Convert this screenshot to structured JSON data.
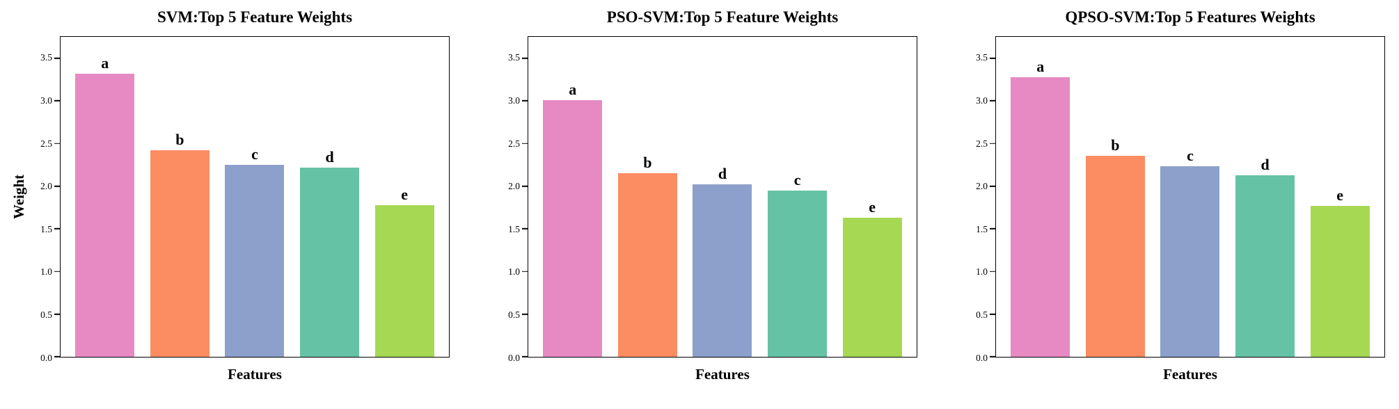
{
  "page": {
    "background": "#ffffff"
  },
  "palette": [
    "#E78AC3",
    "#FC8D62",
    "#8DA0CB",
    "#66C2A5",
    "#A6D854"
  ],
  "axis": {
    "tick_labels": [
      "0.0",
      "0.5",
      "1.0",
      "1.5",
      "2.0",
      "2.5",
      "3.0",
      "3.5"
    ],
    "tick_values": [
      0,
      0.5,
      1,
      1.5,
      2,
      2.5,
      3,
      3.5
    ],
    "display_ymax": 3.75
  },
  "chart_data": [
    {
      "type": "bar",
      "title": "SVM:Top 5 Feature Weights",
      "xlabel": "Features",
      "ylabel": "Weight",
      "categories": [
        "a",
        "b",
        "c",
        "d",
        "e"
      ],
      "values": [
        3.32,
        2.42,
        2.25,
        2.22,
        1.78
      ],
      "ylim": [
        0,
        3.75
      ],
      "yticks": [
        0,
        0.5,
        1,
        1.5,
        2,
        2.5,
        3,
        3.5
      ],
      "grid": false,
      "legend": "none",
      "bar_colors": [
        "#E78AC3",
        "#FC8D62",
        "#8DA0CB",
        "#66C2A5",
        "#A6D854"
      ]
    },
    {
      "type": "bar",
      "title": "PSO-SVM:Top 5 Feature Weights",
      "xlabel": "Features",
      "ylabel": "",
      "categories": [
        "a",
        "b",
        "d",
        "c",
        "e"
      ],
      "values": [
        3.01,
        2.15,
        2.02,
        1.95,
        1.63
      ],
      "ylim": [
        0,
        3.75
      ],
      "yticks": [
        0,
        0.5,
        1,
        1.5,
        2,
        2.5,
        3,
        3.5
      ],
      "grid": false,
      "legend": "none",
      "bar_colors": [
        "#E78AC3",
        "#FC8D62",
        "#8DA0CB",
        "#66C2A5",
        "#A6D854"
      ]
    },
    {
      "type": "bar",
      "title": "QPSO-SVM:Top 5 Features Weights",
      "xlabel": "Features",
      "ylabel": "",
      "categories": [
        "a",
        "b",
        "c",
        "d",
        "e"
      ],
      "values": [
        3.28,
        2.36,
        2.23,
        2.13,
        1.77
      ],
      "ylim": [
        0,
        3.75
      ],
      "yticks": [
        0,
        0.5,
        1,
        1.5,
        2,
        2.5,
        3,
        3.5
      ],
      "grid": false,
      "legend": "none",
      "bar_colors": [
        "#E78AC3",
        "#FC8D62",
        "#8DA0CB",
        "#66C2A5",
        "#A6D854"
      ]
    }
  ]
}
